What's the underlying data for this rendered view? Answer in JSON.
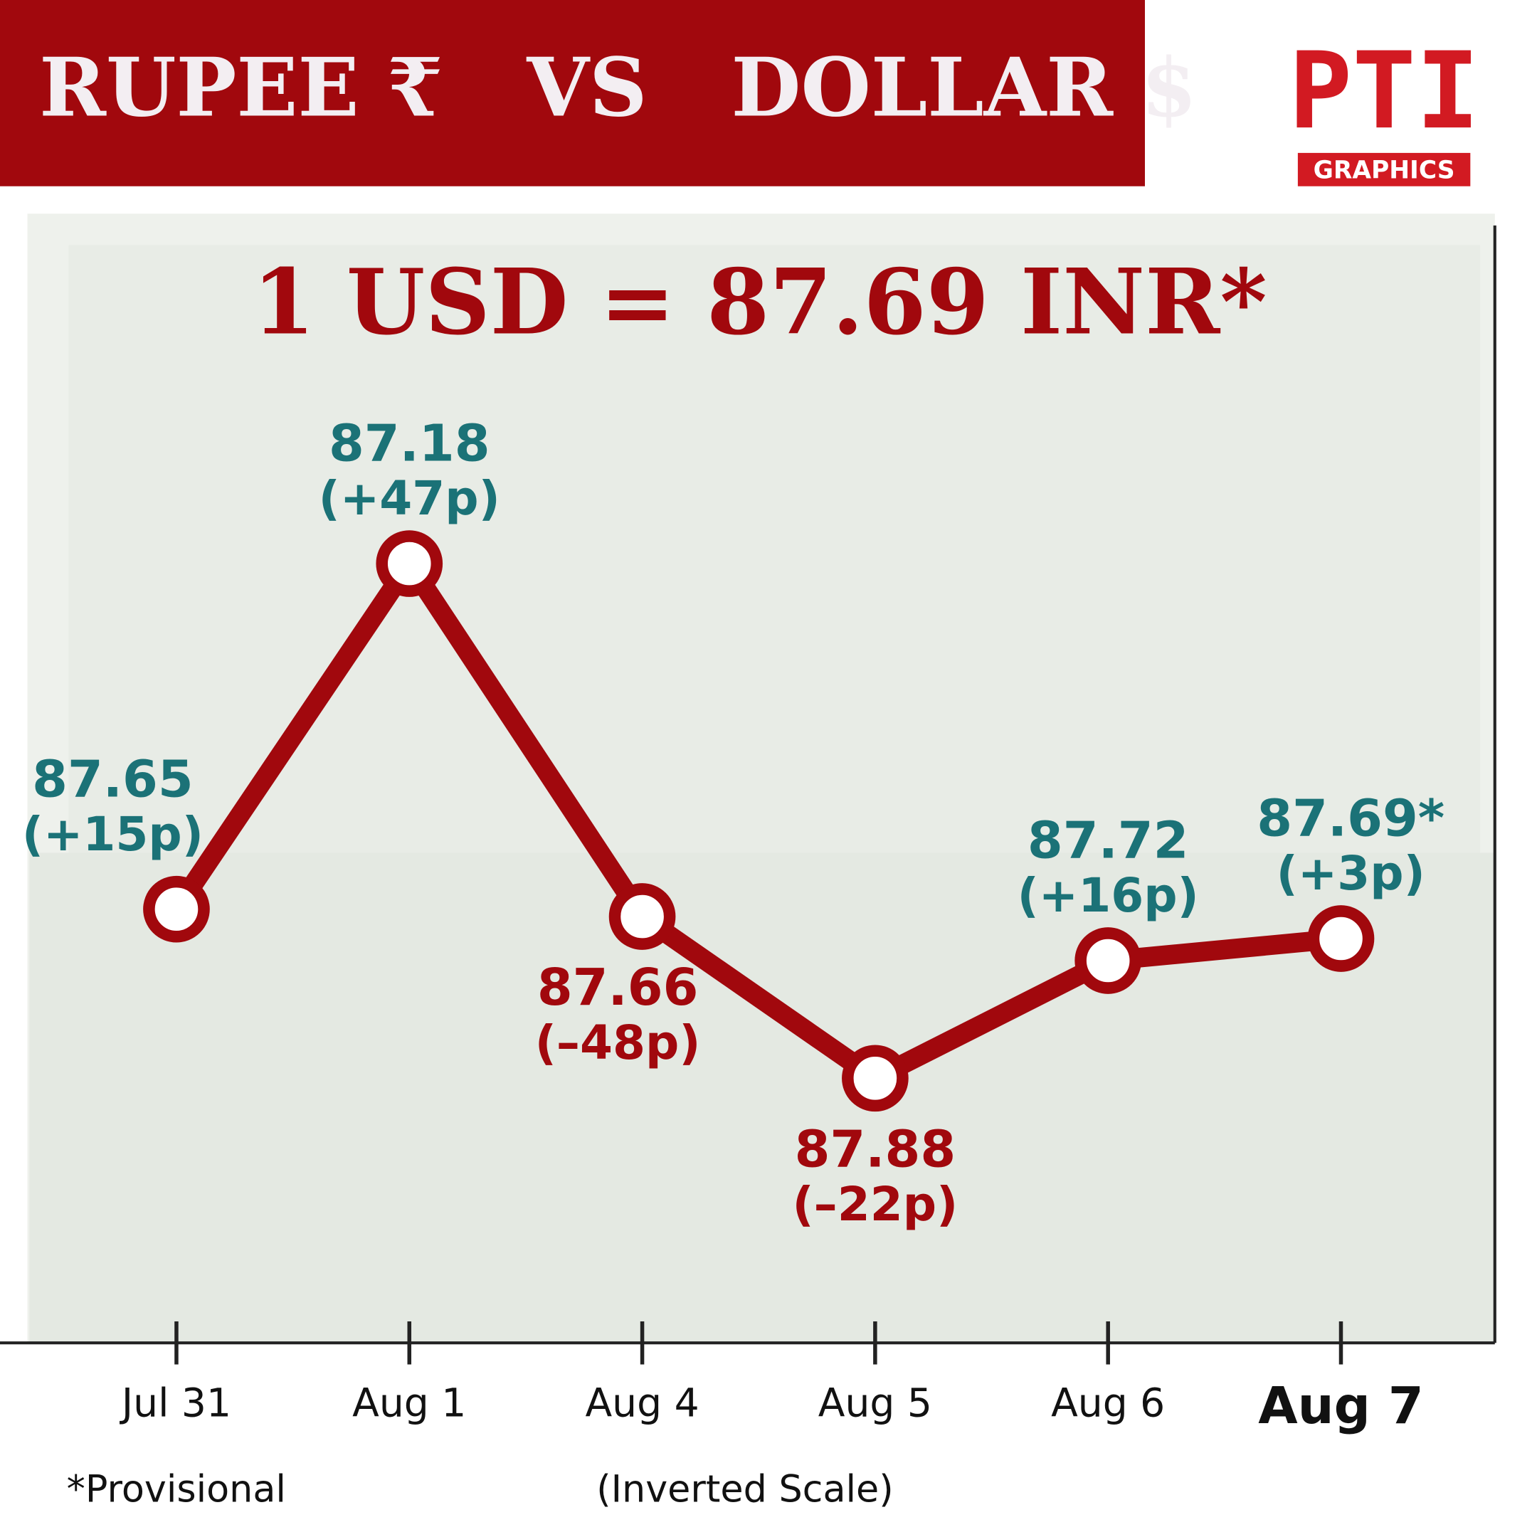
{
  "title": "RUPEE ₹   VS   DOLLAR $",
  "logo": "PTI",
  "logo_sub": "GRAPHICS",
  "chart_data": {
    "type": "line",
    "title": "1 USD = 87.69 INR*",
    "categories": [
      "Jul 31",
      "Aug 1",
      "Aug 4",
      "Aug 5",
      "Aug 6",
      "Aug 7"
    ],
    "values": [
      87.65,
      87.18,
      87.66,
      87.88,
      87.72,
      87.69
    ],
    "value_labels": [
      "87.65",
      "87.18",
      "87.66",
      "87.88",
      "87.72",
      "87.69*"
    ],
    "change_labels": [
      "(+15p)",
      "(+47p)",
      "(–48p)",
      "(–22p)",
      "(+16p)",
      "(+3p)"
    ],
    "label_colors": [
      "#1b7277",
      "#1b7277",
      "#a1080d",
      "#a1080d",
      "#1b7277",
      "#1b7277"
    ],
    "color": "#a1080d",
    "ylim": [
      86.72,
      88.24
    ],
    "inverted": true,
    "footnote": "*Provisional",
    "note": "(Inverted Scale)"
  }
}
